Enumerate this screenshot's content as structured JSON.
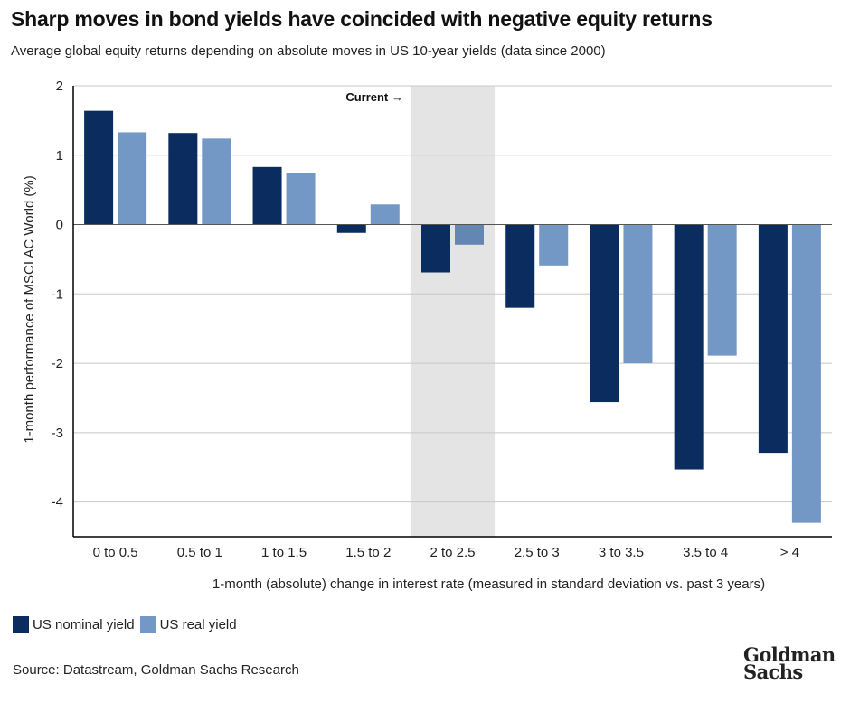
{
  "header": {
    "title": "Sharp moves in bond yields have coincided with negative equity returns",
    "subtitle": "Average global equity returns depending on absolute moves in US 10-year yields (data since 2000)"
  },
  "footer": {
    "source": "Source: Datastream, Goldman Sachs Research",
    "logo_line1": "Goldman",
    "logo_line2": "Sachs"
  },
  "colors": {
    "nominal": "#0b2c5e",
    "real": "#7398c6",
    "highlight_band": "#e4e4e4",
    "grid": "#c8c8c8",
    "axis": "#000000"
  },
  "chart_data": {
    "type": "bar",
    "categories": [
      "0 to 0.5",
      "0.5 to 1",
      "1 to 1.5",
      "1.5 to 2",
      "2 to 2.5",
      "2.5 to 3",
      "3 to 3.5",
      "3.5 to 4",
      "> 4"
    ],
    "series": [
      {
        "name": "US nominal yield",
        "values": [
          1.64,
          1.32,
          0.83,
          -0.12,
          -0.69,
          -1.2,
          -2.56,
          -3.53,
          -3.29
        ]
      },
      {
        "name": "US real yield",
        "values": [
          1.33,
          1.24,
          0.74,
          0.29,
          -0.29,
          -0.59,
          -2.0,
          -1.89,
          -4.3
        ]
      }
    ],
    "xlabel": "1-month (absolute) change in interest rate (measured in standard deviation vs. past 3 years)",
    "ylabel": "1-month performance of MSCI AC World (%)",
    "ylim": [
      -4.5,
      2
    ],
    "yticks": [
      2,
      1,
      0,
      -1,
      -2,
      -3,
      -4
    ],
    "ytick_labels": [
      "2",
      "1",
      "0",
      "-1",
      "-2",
      "-3",
      "-4"
    ],
    "grid": true,
    "highlight_category": "2 to 2.5",
    "annotation": "Current →",
    "legend_position": "bottom-left"
  }
}
